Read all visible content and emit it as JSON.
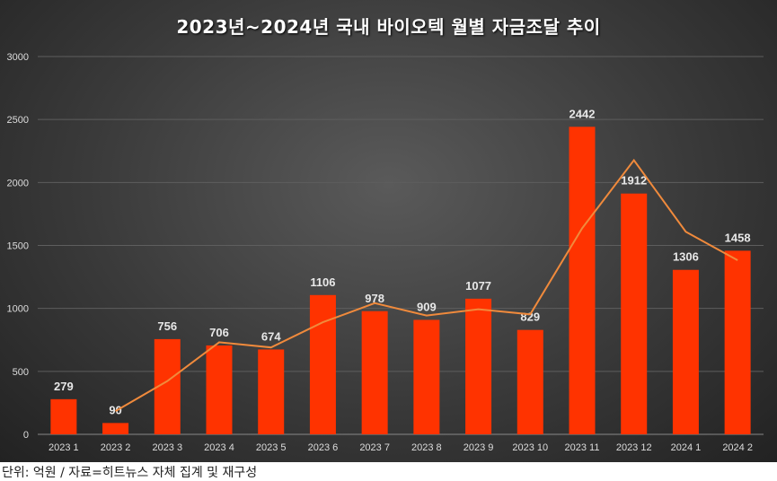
{
  "chart_data": {
    "type": "bar",
    "title": "2023년~2024년 국내 바이오텍 월별 자금조달 추이",
    "categories": [
      "2023 1",
      "2023 2",
      "2023 3",
      "2023 4",
      "2023 5",
      "2023 6",
      "2023 7",
      "2023 8",
      "2023 9",
      "2023 10",
      "2023 11",
      "2023 12",
      "2024 1",
      "2024 2"
    ],
    "values": [
      279,
      90,
      756,
      706,
      674,
      1106,
      978,
      909,
      1077,
      829,
      2442,
      1912,
      1306,
      1458
    ],
    "trendline": {
      "type": "2-period moving average",
      "values": [
        null,
        184.5,
        423,
        731,
        690,
        890,
        1042,
        943.5,
        993,
        953,
        1635.5,
        2177,
        1609,
        1382
      ]
    },
    "ylim": [
      0,
      3000
    ],
    "yticks": [
      0,
      500,
      1000,
      1500,
      2000,
      2500,
      3000
    ],
    "grid": true,
    "legend": "none",
    "colors": {
      "bar": "#FF3300",
      "line": "#F08A3C"
    }
  },
  "footer": "단위: 억원 / 자료=히트뉴스 자체 집계 및 재구성"
}
